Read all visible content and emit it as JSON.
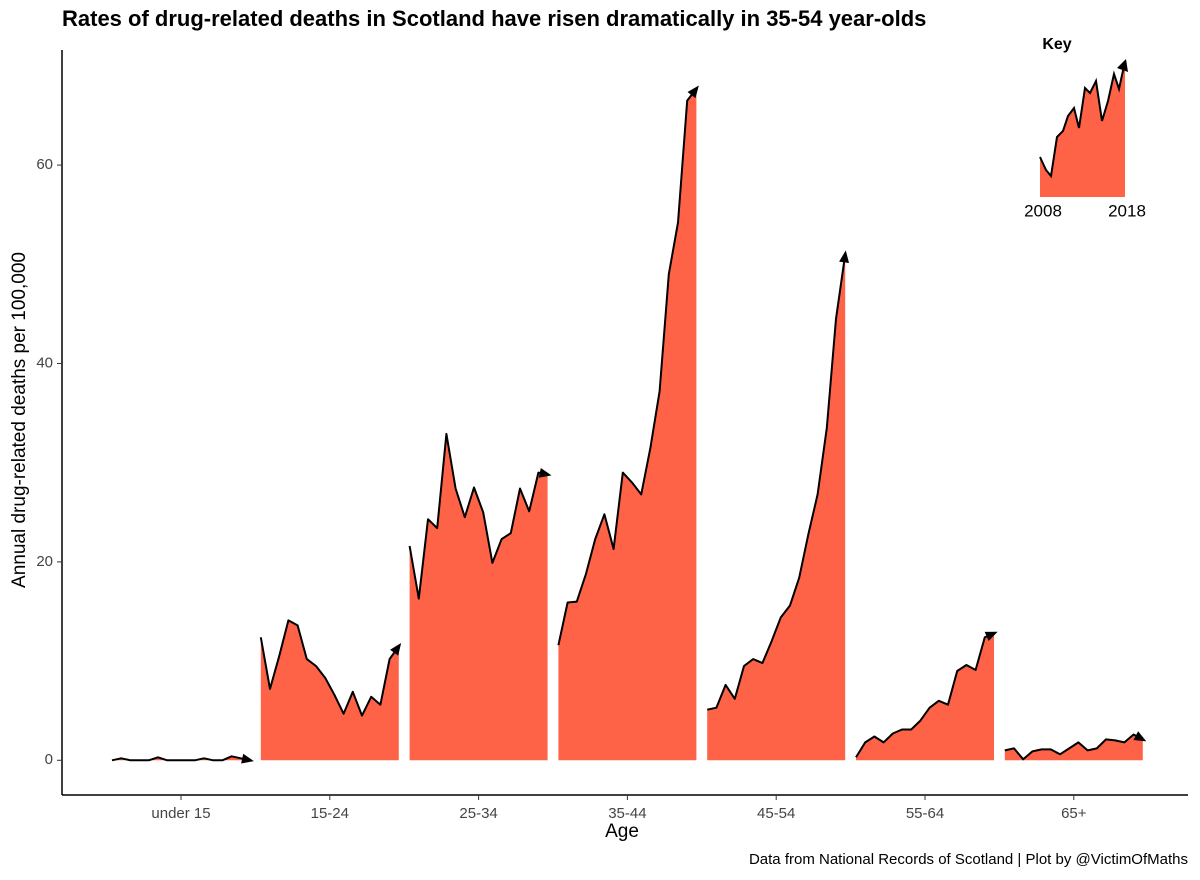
{
  "chart_data": {
    "type": "area",
    "title": "Rates of drug-related deaths in Scotland have risen dramatically in 35-54 year-olds",
    "x_label": "Age",
    "y_label": "Annual drug-related deaths per 100,000",
    "caption": "Data from National Records of Scotland | Plot by @VictimOfMaths",
    "color": "#ff6347",
    "ylim": [
      -3.5,
      71.6
    ],
    "yticks": [
      0,
      20,
      40,
      60
    ],
    "series": [
      {
        "name": "under 15",
        "values": [
          0,
          0.2,
          0,
          0,
          0,
          0.3,
          0,
          0,
          0,
          0,
          0.2,
          0,
          0,
          0.4,
          0.2,
          0
        ]
      },
      {
        "name": "15-24",
        "values": [
          12.4,
          7.2,
          10.5,
          14.1,
          13.6,
          10.2,
          9.5,
          8.3,
          6.6,
          4.7,
          6.9,
          4.5,
          6.4,
          5.6,
          10.2,
          11.5
        ]
      },
      {
        "name": "25-34",
        "values": [
          21.6,
          16.3,
          24.3,
          23.4,
          32.9,
          27.4,
          24.5,
          27.5,
          25,
          19.9,
          22.3,
          22.9,
          27.4,
          25.1,
          29,
          28.8
        ]
      },
      {
        "name": "35-44",
        "values": [
          11.6,
          15.9,
          16,
          18.8,
          22.3,
          24.8,
          21.3,
          29,
          28,
          26.8,
          31.5,
          37.2,
          49,
          54.2,
          66.5,
          67.7
        ]
      },
      {
        "name": "45-54",
        "values": [
          5.1,
          5.3,
          7.6,
          6.2,
          9.5,
          10.2,
          9.8,
          12,
          14.4,
          15.6,
          18.4,
          22.8,
          26.8,
          33.5,
          44.5,
          51
        ]
      },
      {
        "name": "55-64",
        "values": [
          0.3,
          1.8,
          2.4,
          1.8,
          2.7,
          3.1,
          3.1,
          4,
          5.3,
          6,
          5.6,
          9,
          9.6,
          9.1,
          12.4,
          12.8
        ]
      },
      {
        "name": "65+",
        "values": [
          1,
          1.2,
          0.1,
          0.9,
          1.1,
          1.1,
          0.6,
          1.2,
          1.8,
          1,
          1.2,
          2.1,
          2,
          1.8,
          2.6,
          2.1
        ]
      }
    ],
    "key": {
      "title": "Key",
      "start": "2008",
      "end": "2018"
    }
  }
}
